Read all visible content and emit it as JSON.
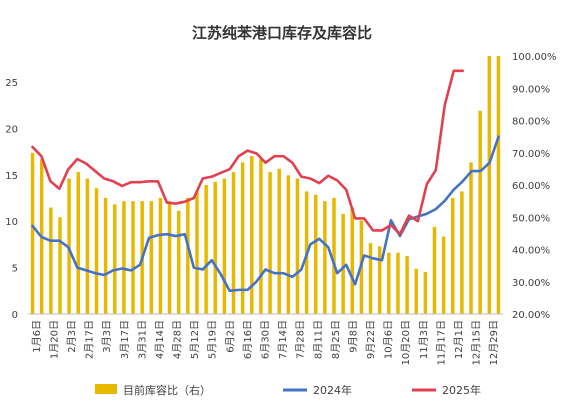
{
  "chart_data": {
    "type": "bar+line",
    "title": "江苏纯苯港口库存及库容比",
    "x_labels": [
      "1月6日",
      "1月20日",
      "2月3日",
      "2月17日",
      "3月3日",
      "3月17日",
      "3月31日",
      "4月14日",
      "4月28日",
      "5月12日",
      "5月19日",
      "6月2日",
      "6月16日",
      "6月30日",
      "7月14日",
      "7月28日",
      "8月11日",
      "8月25日",
      "9月8日",
      "9月22日",
      "10月6日",
      "10月20日",
      "11月3日",
      "11月17日",
      "12月1日",
      "12月15日",
      "12月29日"
    ],
    "y_left": {
      "min": 0,
      "max": 25,
      "ticks": [
        0,
        5,
        10,
        15,
        20,
        25
      ]
    },
    "y_right": {
      "min": 20,
      "max": 100,
      "ticks": [
        "20.00%",
        "30.00%",
        "40.00%",
        "50.00%",
        "60.00%",
        "70.00%",
        "80.00%",
        "90.00%",
        "100.00%"
      ]
    },
    "bar_color": "#E8B800",
    "series": [
      {
        "name": "目前库容比（右）",
        "kind": "bar",
        "axis": "right",
        "color": "#E8B800",
        "values": [
          70,
          68,
          53,
          50,
          62,
          64,
          62,
          59,
          56,
          54,
          55,
          55,
          55,
          55,
          56,
          55,
          52,
          56,
          58,
          60,
          61,
          62,
          64,
          67,
          69,
          68,
          64,
          65,
          63,
          62,
          58,
          57,
          55,
          56,
          51,
          53,
          49,
          42,
          41,
          39,
          39,
          38,
          34,
          33,
          47,
          44,
          56,
          58,
          67,
          83,
          100,
          100
        ]
      },
      {
        "name": "2024年",
        "kind": "line",
        "axis": "left",
        "color": "#4472C4",
        "values": [
          9.5,
          8.3,
          7.9,
          7.9,
          7.2,
          5.0,
          4.7,
          4.4,
          4.2,
          4.7,
          4.9,
          4.7,
          5.3,
          8.2,
          8.5,
          8.6,
          8.4,
          8.6,
          5.0,
          4.8,
          5.8,
          4.3,
          2.5,
          2.6,
          2.6,
          3.5,
          4.8,
          4.4,
          4.4,
          4.0,
          4.8,
          7.5,
          8.1,
          7.2,
          4.4,
          5.3,
          3.2,
          6.3,
          6.0,
          5.8,
          10.1,
          8.4,
          10.2,
          10.5,
          10.8,
          11.3,
          12.2,
          13.4,
          14.3,
          15.4,
          15.4,
          16.3,
          19.1
        ]
      },
      {
        "name": "2025年",
        "kind": "line",
        "axis": "left",
        "color": "#E04050",
        "values": [
          18.0,
          17.0,
          14.3,
          13.5,
          15.6,
          16.7,
          16.2,
          15.4,
          14.6,
          14.3,
          13.8,
          14.2,
          14.2,
          14.3,
          14.3,
          12.0,
          11.9,
          12.1,
          12.5,
          14.6,
          14.8,
          15.2,
          15.6,
          17.0,
          17.6,
          17.3,
          16.3,
          17.0,
          17.0,
          16.3,
          14.8,
          14.6,
          14.1,
          14.9,
          14.4,
          13.4,
          10.3,
          10.3,
          9.0,
          9.0,
          9.6,
          8.6,
          10.6,
          10.0,
          14.0,
          15.5,
          22.5,
          26.2,
          26.2
        ]
      }
    ],
    "legend": {
      "position": "bottom",
      "entries": [
        "目前库容比（右）",
        "2024年",
        "2025年"
      ]
    },
    "grid": false
  }
}
